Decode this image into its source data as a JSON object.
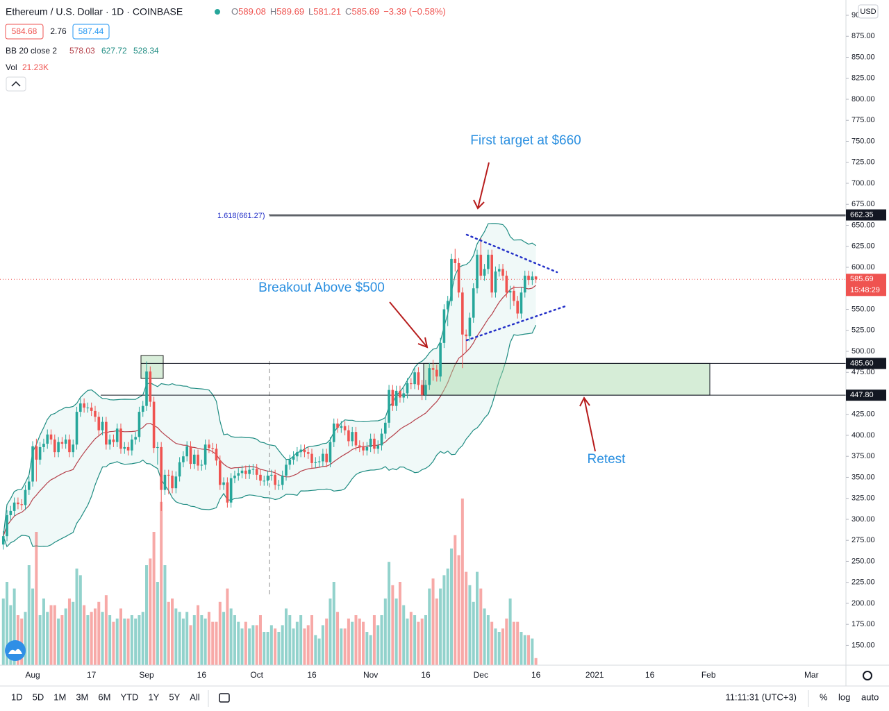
{
  "header": {
    "symbol": "Ethereum / U.S. Dollar · 1D · COINBASE",
    "ohlc": [
      {
        "key": "O",
        "value": "589.08"
      },
      {
        "key": "H",
        "value": "589.69"
      },
      {
        "key": "L",
        "value": "581.21"
      },
      {
        "key": "C",
        "value": "585.69"
      }
    ],
    "change": "−3.39 (−0.58%)",
    "sell": "584.68",
    "spread": "2.76",
    "buy": "587.44",
    "bb_name": "BB 20 close 2",
    "bb_values": [
      "578.03",
      "627.72",
      "528.34"
    ],
    "currency": "USD"
  },
  "chart_data": {
    "type": "candlestick",
    "up_color": "#26a69a",
    "down_color": "#ef5350",
    "grid": true,
    "open": [
      270,
      280,
      305,
      310,
      320,
      318,
      317,
      335,
      345,
      387,
      371,
      386,
      390,
      401,
      395,
      380,
      392,
      390,
      395,
      380,
      389,
      428,
      438,
      433,
      433,
      429,
      422,
      406,
      416,
      389,
      395,
      392,
      408,
      384,
      386,
      382,
      395,
      398,
      428,
      435,
      476,
      440,
      385,
      386,
      335,
      353,
      352,
      337,
      351,
      368,
      375,
      387,
      366,
      377,
      364,
      365,
      389,
      385,
      384,
      370,
      341,
      344,
      320,
      349,
      352,
      355,
      358,
      354,
      359,
      360,
      353,
      346,
      346,
      352,
      353,
      341,
      341,
      352,
      365,
      371,
      375,
      380,
      383,
      380,
      378,
      367,
      368,
      369,
      378,
      368,
      392,
      414,
      409,
      411,
      406,
      393,
      404,
      388,
      386,
      382,
      386,
      396,
      384,
      388,
      402,
      415,
      454,
      435,
      453,
      445,
      450,
      462,
      461,
      475,
      460,
      448,
      460,
      480,
      478,
      470,
      510,
      550,
      560,
      610,
      605,
      570,
      520,
      518,
      540,
      575,
      615,
      590,
      598,
      615,
      570,
      595,
      598,
      590,
      570,
      572,
      560,
      545,
      570,
      590,
      585,
      589.08
    ],
    "high": [
      286,
      311,
      316,
      326,
      326,
      324,
      341,
      351,
      393,
      396,
      392,
      396,
      407,
      407,
      401,
      398,
      398,
      401,
      401,
      395,
      434,
      444,
      444,
      439,
      439,
      435,
      428,
      422,
      422,
      401,
      401,
      414,
      414,
      392,
      392,
      401,
      404,
      434,
      441,
      488,
      482,
      446,
      392,
      392,
      359,
      359,
      358,
      357,
      374,
      381,
      393,
      393,
      383,
      383,
      371,
      395,
      395,
      391,
      390,
      376,
      350,
      350,
      355,
      358,
      361,
      364,
      364,
      365,
      366,
      366,
      359,
      352,
      358,
      359,
      359,
      347,
      358,
      371,
      377,
      381,
      386,
      389,
      389,
      386,
      384,
      374,
      375,
      384,
      384,
      398,
      420,
      420,
      417,
      417,
      412,
      410,
      410,
      394,
      392,
      392,
      402,
      402,
      394,
      408,
      421,
      460,
      460,
      459,
      459,
      456,
      468,
      468,
      481,
      481,
      466,
      466,
      486,
      490,
      484,
      516,
      556,
      566,
      616,
      622,
      611,
      576,
      526,
      546,
      581,
      621,
      635,
      604,
      621,
      621,
      601,
      604,
      604,
      596,
      578,
      578,
      566,
      576,
      596,
      596,
      595,
      589.69
    ],
    "low": [
      264,
      274,
      299,
      304,
      312,
      311,
      311,
      329,
      339,
      345,
      365,
      380,
      384,
      389,
      374,
      374,
      384,
      384,
      374,
      374,
      383,
      422,
      427,
      427,
      423,
      416,
      400,
      400,
      383,
      383,
      386,
      386,
      378,
      378,
      376,
      376,
      389,
      392,
      422,
      429,
      434,
      379,
      365,
      310,
      329,
      330,
      331,
      331,
      345,
      362,
      369,
      360,
      360,
      358,
      358,
      359,
      379,
      378,
      364,
      335,
      335,
      314,
      314,
      343,
      346,
      349,
      348,
      348,
      353,
      347,
      340,
      340,
      340,
      346,
      335,
      335,
      335,
      346,
      359,
      365,
      369,
      374,
      374,
      372,
      361,
      361,
      362,
      363,
      362,
      362,
      386,
      403,
      403,
      400,
      387,
      387,
      382,
      380,
      376,
      376,
      380,
      378,
      378,
      382,
      396,
      409,
      429,
      429,
      439,
      439,
      444,
      455,
      455,
      454,
      442,
      442,
      454,
      465,
      464,
      464,
      504,
      530,
      554,
      595,
      564,
      480,
      500,
      512,
      534,
      569,
      585,
      584,
      592,
      564,
      564,
      589,
      584,
      564,
      550,
      554,
      539,
      539,
      564,
      579,
      579,
      581.21
    ],
    "close": [
      280,
      305,
      310,
      320,
      318,
      317,
      335,
      345,
      387,
      371,
      386,
      390,
      401,
      395,
      380,
      392,
      390,
      395,
      380,
      389,
      428,
      438,
      433,
      433,
      429,
      422,
      406,
      416,
      389,
      395,
      392,
      408,
      384,
      386,
      382,
      395,
      398,
      428,
      435,
      476,
      440,
      385,
      386,
      335,
      353,
      352,
      337,
      351,
      368,
      375,
      387,
      366,
      377,
      364,
      365,
      389,
      385,
      384,
      370,
      341,
      344,
      320,
      349,
      352,
      355,
      358,
      354,
      359,
      360,
      353,
      346,
      346,
      352,
      353,
      341,
      341,
      352,
      365,
      371,
      375,
      380,
      383,
      380,
      378,
      367,
      368,
      369,
      378,
      368,
      392,
      414,
      409,
      411,
      406,
      393,
      404,
      388,
      386,
      382,
      386,
      396,
      384,
      388,
      402,
      415,
      454,
      435,
      453,
      445,
      450,
      462,
      461,
      475,
      460,
      448,
      460,
      480,
      478,
      470,
      510,
      550,
      560,
      610,
      605,
      570,
      520,
      518,
      540,
      575,
      615,
      590,
      598,
      615,
      570,
      595,
      598,
      590,
      570,
      572,
      560,
      545,
      570,
      590,
      585,
      589.08,
      585.69
    ],
    "volume": {
      "name": "Vol",
      "last_label": "21.23K",
      "values": [
        200,
        250,
        180,
        230,
        150,
        140,
        160,
        300,
        230,
        400,
        150,
        200,
        160,
        180,
        180,
        140,
        150,
        170,
        200,
        190,
        290,
        270,
        180,
        150,
        160,
        170,
        190,
        160,
        210,
        150,
        130,
        140,
        170,
        140,
        140,
        150,
        140,
        150,
        160,
        300,
        320,
        400,
        250,
        490,
        300,
        190,
        200,
        170,
        160,
        140,
        160,
        120,
        150,
        180,
        150,
        140,
        160,
        130,
        130,
        190,
        160,
        230,
        170,
        150,
        130,
        110,
        130,
        110,
        120,
        120,
        150,
        100,
        100,
        120,
        110,
        100,
        120,
        170,
        150,
        110,
        130,
        150,
        110,
        120,
        150,
        90,
        80,
        120,
        140,
        200,
        250,
        160,
        110,
        110,
        140,
        130,
        150,
        140,
        130,
        100,
        90,
        150,
        120,
        150,
        200,
        310,
        240,
        200,
        250,
        180,
        140,
        160,
        150,
        130,
        140,
        150,
        230,
        260,
        200,
        230,
        270,
        290,
        350,
        390,
        330,
        500,
        280,
        240,
        190,
        280,
        230,
        170,
        150,
        130,
        110,
        100,
        110,
        140,
        200,
        130,
        130,
        100,
        90,
        90,
        80,
        21.23
      ]
    },
    "xlim": [
      -0.9,
      229.4
    ],
    "xticks": [
      {
        "value": 8,
        "label": "Aug"
      },
      {
        "value": 24,
        "label": "17"
      },
      {
        "value": 39,
        "label": "Sep"
      },
      {
        "value": 54,
        "label": "16"
      },
      {
        "value": 69,
        "label": "Oct"
      },
      {
        "value": 84,
        "label": "16"
      },
      {
        "value": 100,
        "label": "Nov"
      },
      {
        "value": 115,
        "label": "16"
      },
      {
        "value": 130,
        "label": "Dec"
      },
      {
        "value": 145,
        "label": "16"
      },
      {
        "value": 161,
        "label": "2021"
      },
      {
        "value": 176,
        "label": "16"
      },
      {
        "value": 192,
        "label": "Feb"
      },
      {
        "value": 220,
        "label": "Mar"
      }
    ],
    "ylim": [
      126.4,
      918.2
    ],
    "yticks": [
      {
        "value": 150,
        "label": "150.00"
      },
      {
        "value": 175,
        "label": "175.00"
      },
      {
        "value": 200,
        "label": "200.00"
      },
      {
        "value": 225,
        "label": "225.00"
      },
      {
        "value": 250,
        "label": "250.00"
      },
      {
        "value": 275,
        "label": "275.00"
      },
      {
        "value": 300,
        "label": "300.00"
      },
      {
        "value": 325,
        "label": "325.00"
      },
      {
        "value": 350,
        "label": "350.00"
      },
      {
        "value": 375,
        "label": "375.00"
      },
      {
        "value": 400,
        "label": "400.00"
      },
      {
        "value": 425,
        "label": "425.00"
      },
      {
        "value": 450,
        "label": "450.00"
      },
      {
        "value": 475,
        "label": "475.00"
      },
      {
        "value": 500,
        "label": "500.00"
      },
      {
        "value": 525,
        "label": "525.00"
      },
      {
        "value": 550,
        "label": "550.00"
      },
      {
        "value": 575,
        "label": "575.00"
      },
      {
        "value": 600,
        "label": "600.00"
      },
      {
        "value": 625,
        "label": "625.00"
      },
      {
        "value": 650,
        "label": "650.00"
      },
      {
        "value": 675,
        "label": "675.00"
      },
      {
        "value": 700,
        "label": "700.00"
      },
      {
        "value": 725,
        "label": "725.00"
      },
      {
        "value": 750,
        "label": "750.00"
      },
      {
        "value": 775,
        "label": "775.00"
      },
      {
        "value": 800,
        "label": "800.00"
      },
      {
        "value": 825,
        "label": "825.00"
      },
      {
        "value": 850,
        "label": "850.00"
      },
      {
        "value": 875,
        "label": "875.00"
      },
      {
        "value": 900,
        "label": "900.00"
      }
    ],
    "levels": [
      {
        "value": 662.35,
        "label": "662.35"
      },
      {
        "value": 485.6,
        "label": "485.60"
      },
      {
        "value": 447.8,
        "label": "447.80"
      }
    ],
    "fib": {
      "value": 661.27,
      "label": "1.618(661.27)"
    },
    "last_price": {
      "value": 585.69,
      "label": "585.69",
      "countdown": "15:48:29"
    },
    "annotations": [
      "First target at $660",
      "Breakout Above $500",
      "Retest"
    ]
  },
  "toolbar": {
    "ranges": [
      "1D",
      "5D",
      "1M",
      "3M",
      "6M",
      "YTD",
      "1Y",
      "5Y",
      "All"
    ],
    "clock": "11:11:31 (UTC+3)",
    "options": [
      "%",
      "log",
      "auto"
    ]
  }
}
